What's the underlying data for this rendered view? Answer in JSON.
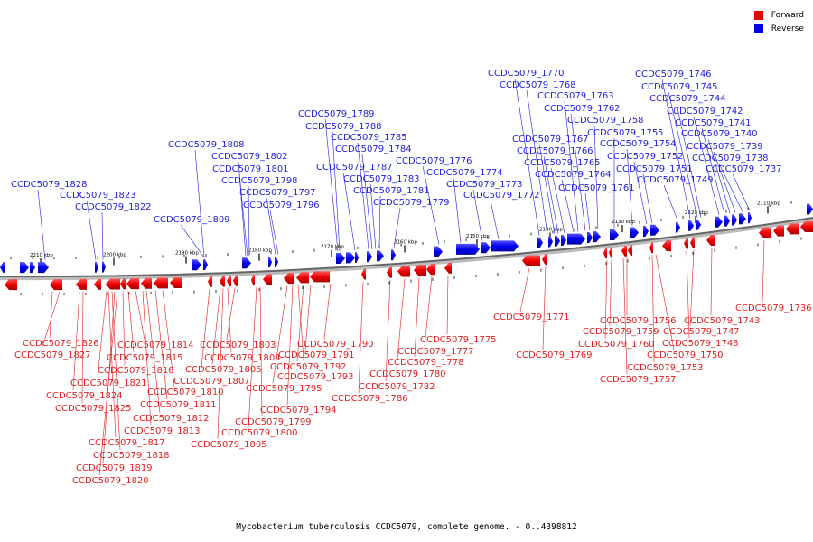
{
  "legend": {
    "forward": {
      "label": "Forward",
      "color": "#ee0000"
    },
    "reverse": {
      "label": "Reverse",
      "color": "#0000ee"
    }
  },
  "caption": "Mycobacterium tuberculosis CCDC5079, complete genome. - 0..4398812",
  "ticks": [
    "2210 kbp",
    "2200 kbp",
    "2190 kbp",
    "2180 kbp",
    "2170 kbp",
    "2160 kbp",
    "2150 kbp",
    "2140 kbp",
    "2130 kbp",
    "2120 kbp",
    "2110 kbp"
  ],
  "reverse_genes": [
    "CCDC5079_1828",
    "CCDC5079_1823",
    "CCDC5079_1822",
    "CCDC5079_1809",
    "CCDC5079_1808",
    "CCDC5079_1802",
    "CCDC5079_1801",
    "CCDC5079_1798",
    "CCDC5079_1797",
    "CCDC5079_1796",
    "CCDC5079_1789",
    "CCDC5079_1788",
    "CCDC5079_1787",
    "CCDC5079_1785",
    "CCDC5079_1784",
    "CCDC5079_1783",
    "CCDC5079_1781",
    "CCDC5079_1779",
    "CCDC5079_1776",
    "CCDC5079_1774",
    "CCDC5079_1773",
    "CCDC5079_1772",
    "CCDC5079_1770",
    "CCDC5079_1768",
    "CCDC5079_1767",
    "CCDC5079_1766",
    "CCDC5079_1765",
    "CCDC5079_1764",
    "CCDC5079_1763",
    "CCDC5079_1762",
    "CCDC5079_1761",
    "CCDC5079_1758",
    "CCDC5079_1755",
    "CCDC5079_1754",
    "CCDC5079_1752",
    "CCDC5079_1751",
    "CCDC5079_1749",
    "CCDC5079_1746",
    "CCDC5079_1745",
    "CCDC5079_1744",
    "CCDC5079_1742",
    "CCDC5079_1741",
    "CCDC5079_1740",
    "CCDC5079_1739",
    "CCDC5079_1738",
    "CCDC5079_1737"
  ],
  "forward_genes": [
    "CCDC5079_1826",
    "CCDC5079_1827",
    "CCDC5079_1824",
    "CCDC5079_1825",
    "CCDC5079_1821",
    "CCDC5079_1817",
    "CCDC5079_1818",
    "CCDC5079_1819",
    "CCDC5079_1820",
    "CCDC5079_1816",
    "CCDC5079_1815",
    "CCDC5079_1814",
    "CCDC5079_1813",
    "CCDC5079_1812",
    "CCDC5079_1811",
    "CCDC5079_1810",
    "CCDC5079_1807",
    "CCDC5079_1806",
    "CCDC5079_1805",
    "CCDC5079_1804",
    "CCDC5079_1803",
    "CCDC5079_1800",
    "CCDC5079_1799",
    "CCDC5079_1795",
    "CCDC5079_1794",
    "CCDC5079_1793",
    "CCDC5079_1792",
    "CCDC5079_1791",
    "CCDC5079_1790",
    "CCDC5079_1786",
    "CCDC5079_1782",
    "CCDC5079_1780",
    "CCDC5079_1778",
    "CCDC5079_1777",
    "CCDC5079_1775",
    "CCDC5079_1771",
    "CCDC5079_1769",
    "CCDC5079_1760",
    "CCDC5079_1759",
    "CCDC5079_1757",
    "CCDC5079_1756",
    "CCDC5079_1753",
    "CCDC5079_1750",
    "CCDC5079_1748",
    "CCDC5079_1747",
    "CCDC5079_1743",
    "CCDC5079_1736"
  ]
}
